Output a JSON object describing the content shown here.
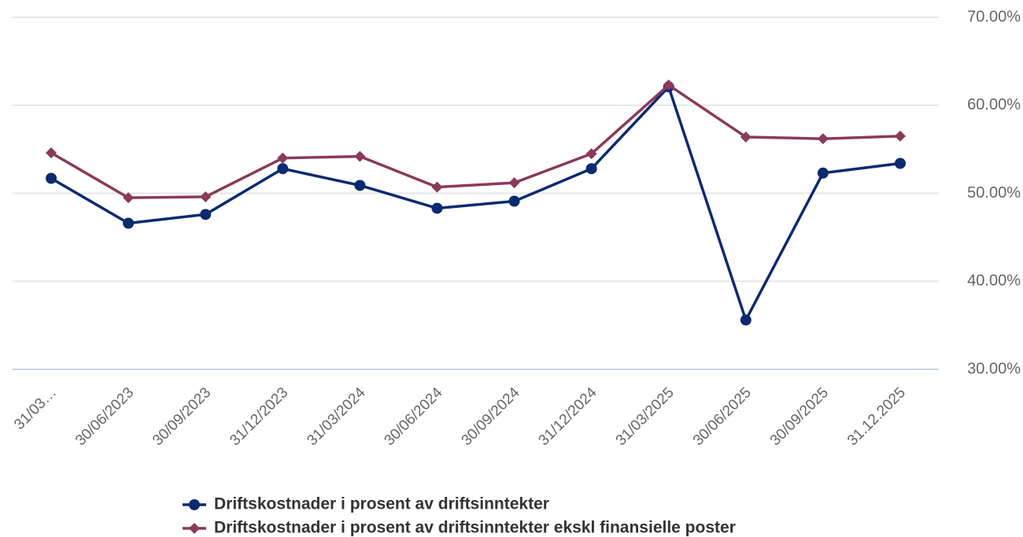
{
  "chart_data": {
    "type": "line",
    "categories": [
      "31/03…",
      "30/06/2023",
      "30/09/2023",
      "31/12/2023",
      "31/03/2024",
      "30/06/2024",
      "30/09/2024",
      "31/12/2024",
      "31/03/2025",
      "30/06/2025",
      "30/09/2025",
      "31.12.2025"
    ],
    "series": [
      {
        "name": "Driftskostnader i prosent av driftsinntekter",
        "color": "#0b2a6f",
        "marker": "circle",
        "values": [
          51.7,
          46.6,
          47.6,
          52.8,
          50.9,
          48.3,
          49.1,
          52.8,
          62.1,
          35.6,
          52.3,
          53.4
        ]
      },
      {
        "name": "Driftskostnader i prosent av driftsinntekter ekskl finansielle poster",
        "color": "#8a3a5b",
        "marker": "diamond",
        "values": [
          54.6,
          49.5,
          49.6,
          54.0,
          54.2,
          50.7,
          51.2,
          54.5,
          62.3,
          56.4,
          56.2,
          56.5
        ]
      }
    ],
    "ylim": [
      30,
      70
    ],
    "yticks": [
      {
        "value": 30,
        "label": "30.00%"
      },
      {
        "value": 40,
        "label": "40.00%"
      },
      {
        "value": 50,
        "label": "50.00%"
      },
      {
        "value": 60,
        "label": "60.00%"
      },
      {
        "value": 70,
        "label": "70.00%"
      }
    ],
    "grid": true,
    "legend": "bottom"
  }
}
